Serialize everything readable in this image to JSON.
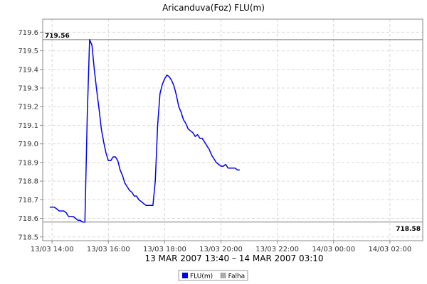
{
  "chart_data": {
    "type": "line",
    "title": "Aricanduva(Foz) FLU(m)",
    "xlabel": "13 MAR 2007 13:40 – 14 MAR 2007 03:10",
    "ylabel": "",
    "ylim": [
      718.48,
      719.67
    ],
    "yticks": [
      718.5,
      718.6,
      718.7,
      718.8,
      718.9,
      719.0,
      719.1,
      719.2,
      719.3,
      719.4,
      719.5,
      719.6
    ],
    "xlim": [
      "13/03 13:40",
      "14/03 03:10"
    ],
    "xticks": [
      {
        "t": "13/03 14:00",
        "label": "13/03 14:00"
      },
      {
        "t": "13/03 16:00",
        "label": "13/03 16:00"
      },
      {
        "t": "13/03 18:00",
        "label": "13/03 18:00"
      },
      {
        "t": "13/03 20:00",
        "label": "13/03 20:00"
      },
      {
        "t": "13/03 22:00",
        "label": "13/03 22:00"
      },
      {
        "t": "14/03 00:00",
        "label": "14/03 00:00"
      },
      {
        "t": "14/03 02:00",
        "label": "14/03 02:00"
      }
    ],
    "grid": true,
    "legend_position": "bottom",
    "reference_lines": [
      {
        "value": 719.56,
        "label": "719.56",
        "label_side": "left"
      },
      {
        "value": 718.58,
        "label": "718.58",
        "label_side": "right"
      }
    ],
    "series": [
      {
        "name": "FLU(m)",
        "color": "#0000ee",
        "points": [
          [
            "13/03 13:55",
            718.66
          ],
          [
            "13/03 14:00",
            718.66
          ],
          [
            "13/03 14:05",
            718.66
          ],
          [
            "13/03 14:10",
            718.65
          ],
          [
            "13/03 14:15",
            718.64
          ],
          [
            "13/03 14:20",
            718.64
          ],
          [
            "13/03 14:25",
            718.64
          ],
          [
            "13/03 14:30",
            718.63
          ],
          [
            "13/03 14:35",
            718.61
          ],
          [
            "13/03 14:40",
            718.61
          ],
          [
            "13/03 14:45",
            718.61
          ],
          [
            "13/03 14:50",
            718.6
          ],
          [
            "13/03 14:55",
            718.59
          ],
          [
            "13/03 15:00",
            718.59
          ],
          [
            "13/03 15:05",
            718.58
          ],
          [
            "13/03 15:10",
            718.58
          ],
          [
            "13/03 15:15",
            719.15
          ],
          [
            "13/03 15:20",
            719.56
          ],
          [
            "13/03 15:25",
            719.53
          ],
          [
            "13/03 15:30",
            719.4
          ],
          [
            "13/03 15:35",
            719.29
          ],
          [
            "13/03 15:40",
            719.19
          ],
          [
            "13/03 15:45",
            719.08
          ],
          [
            "13/03 15:50",
            719.01
          ],
          [
            "13/03 15:55",
            718.95
          ],
          [
            "13/03 16:00",
            718.91
          ],
          [
            "13/03 16:05",
            718.91
          ],
          [
            "13/03 16:10",
            718.93
          ],
          [
            "13/03 16:15",
            718.93
          ],
          [
            "13/03 16:20",
            718.91
          ],
          [
            "13/03 16:25",
            718.86
          ],
          [
            "13/03 16:30",
            718.83
          ],
          [
            "13/03 16:35",
            718.79
          ],
          [
            "13/03 16:40",
            718.77
          ],
          [
            "13/03 16:45",
            718.75
          ],
          [
            "13/03 16:50",
            718.74
          ],
          [
            "13/03 16:55",
            718.72
          ],
          [
            "13/03 17:00",
            718.72
          ],
          [
            "13/03 17:05",
            718.7
          ],
          [
            "13/03 17:10",
            718.69
          ],
          [
            "13/03 17:15",
            718.68
          ],
          [
            "13/03 17:20",
            718.67
          ],
          [
            "13/03 17:25",
            718.67
          ],
          [
            "13/03 17:30",
            718.67
          ],
          [
            "13/03 17:35",
            718.67
          ],
          [
            "13/03 17:40",
            718.8
          ],
          [
            "13/03 17:45",
            719.1
          ],
          [
            "13/03 17:50",
            719.27
          ],
          [
            "13/03 17:55",
            719.32
          ],
          [
            "13/03 18:00",
            719.35
          ],
          [
            "13/03 18:05",
            719.37
          ],
          [
            "13/03 18:10",
            719.36
          ],
          [
            "13/03 18:15",
            719.34
          ],
          [
            "13/03 18:20",
            719.31
          ],
          [
            "13/03 18:25",
            719.26
          ],
          [
            "13/03 18:30",
            719.2
          ],
          [
            "13/03 18:35",
            719.17
          ],
          [
            "13/03 18:40",
            719.13
          ],
          [
            "13/03 18:45",
            719.11
          ],
          [
            "13/03 18:50",
            719.08
          ],
          [
            "13/03 18:55",
            719.07
          ],
          [
            "13/03 19:00",
            719.06
          ],
          [
            "13/03 19:05",
            719.04
          ],
          [
            "13/03 19:10",
            719.05
          ],
          [
            "13/03 19:15",
            719.03
          ],
          [
            "13/03 19:20",
            719.03
          ],
          [
            "13/03 19:25",
            719.01
          ],
          [
            "13/03 19:30",
            718.99
          ],
          [
            "13/03 19:35",
            718.97
          ],
          [
            "13/03 19:40",
            718.94
          ],
          [
            "13/03 19:45",
            718.92
          ],
          [
            "13/03 19:50",
            718.9
          ],
          [
            "13/03 19:55",
            718.89
          ],
          [
            "13/03 20:00",
            718.88
          ],
          [
            "13/03 20:05",
            718.88
          ],
          [
            "13/03 20:10",
            718.89
          ],
          [
            "13/03 20:15",
            718.87
          ],
          [
            "13/03 20:20",
            718.87
          ],
          [
            "13/03 20:25",
            718.87
          ],
          [
            "13/03 20:30",
            718.87
          ],
          [
            "13/03 20:35",
            718.86
          ],
          [
            "13/03 20:40",
            718.86
          ]
        ]
      },
      {
        "name": "Falha",
        "color": "#aaaaaa",
        "points": []
      }
    ]
  }
}
